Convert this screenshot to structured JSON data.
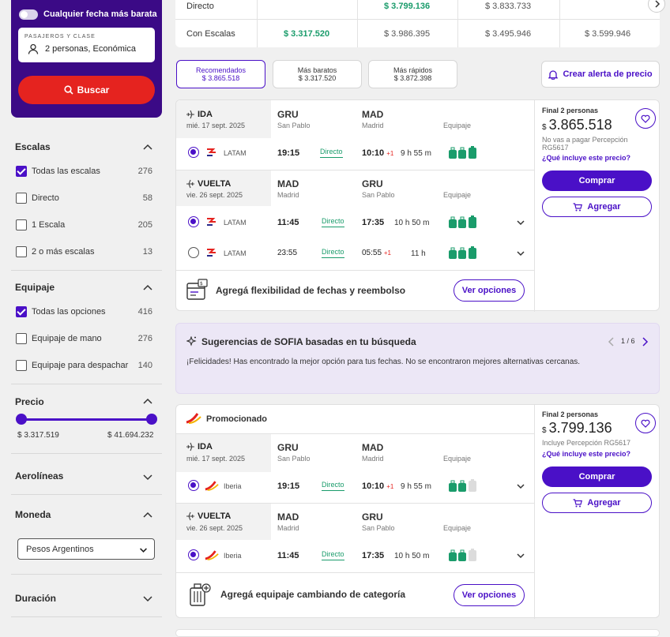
{
  "sidebar": {
    "cheapest_date_label": "Cualquier fecha más barata",
    "passengers_label": "PASAJEROS Y CLASE",
    "passengers_value": "2 personas, Económica",
    "search_label": "Buscar",
    "escalas": {
      "title": "Escalas",
      "options": [
        {
          "label": "Todas las escalas",
          "count": "276",
          "checked": true
        },
        {
          "label": "Directo",
          "count": "58",
          "checked": false
        },
        {
          "label": "1 Escala",
          "count": "205",
          "checked": false
        },
        {
          "label": "2 o más escalas",
          "count": "13",
          "checked": false
        }
      ]
    },
    "equipaje": {
      "title": "Equipaje",
      "options": [
        {
          "label": "Todas las opciones",
          "count": "416",
          "checked": true
        },
        {
          "label": "Equipaje de mano",
          "count": "276",
          "checked": false
        },
        {
          "label": "Equipaje para despachar",
          "count": "140",
          "checked": false
        }
      ]
    },
    "precio": {
      "title": "Precio",
      "min": "$ 3.317.519",
      "max": "$ 41.694.232"
    },
    "aerolineas_title": "Aerolíneas",
    "moneda": {
      "title": "Moneda",
      "selected": "Pesos Argentinos"
    },
    "duracion_title": "Duración"
  },
  "top_table": {
    "rows": [
      {
        "label": "Directo",
        "cells": [
          "",
          "$ 3.799.136",
          "$ 3.833.733",
          ""
        ]
      },
      {
        "label": "Con Escalas",
        "cells": [
          "$ 3.317.520",
          "$ 3.986.395",
          "$ 3.495.946",
          "$ 3.599.946"
        ]
      }
    ]
  },
  "tabs": [
    {
      "title": "Recomendados",
      "price": "$ 3.865.518",
      "active": true
    },
    {
      "title": "Más baratos",
      "price": "$ 3.317.520",
      "active": false
    },
    {
      "title": "Más rápidos",
      "price": "$ 3.872.398",
      "active": false
    }
  ],
  "alert_label": "Crear alerta de precio",
  "card1": {
    "ida": {
      "title": "IDA",
      "date": "mié. 17 sept. 2025",
      "from_code": "GRU",
      "from_city": "San Pablo",
      "to_code": "MAD",
      "to_city": "Madrid",
      "equipaje": "Equipaje",
      "flight": {
        "airline": "LATAM",
        "dep": "19:15",
        "type": "Directo",
        "arr": "10:10",
        "plus": "+1",
        "dur": "9 h 55 m"
      }
    },
    "vuelta": {
      "title": "VUELTA",
      "date": "vie. 26 sept. 2025",
      "from_code": "MAD",
      "from_city": "Madrid",
      "to_code": "GRU",
      "to_city": "San Pablo",
      "equipaje": "Equipaje",
      "flights": [
        {
          "airline": "LATAM",
          "dep": "11:45",
          "type": "Directo",
          "arr": "17:35",
          "plus": "",
          "dur": "10 h 50 m",
          "selected": true
        },
        {
          "airline": "LATAM",
          "dep": "23:55",
          "type": "Directo",
          "arr": "05:55",
          "plus": "+1",
          "dur": "11 h",
          "selected": false
        }
      ]
    },
    "price_label": "Final 2 personas",
    "currency": "$",
    "price": "3.865.518",
    "note": "No vas a pagar Percepción RG5617",
    "what_includes": "¿Qué incluye este precio?",
    "buy": "Comprar",
    "add": "Agregar",
    "flex_text": "Agregá flexibilidad de fechas y reembolso",
    "ver_opciones": "Ver opciones"
  },
  "sofia": {
    "title": "Sugerencias de SOFIA basadas en tu búsqueda",
    "pager": "1 / 6",
    "message": "¡Felicidades! Has encontrado la mejor opción para tus fechas. No se encontraron mejores alternativas cercanas."
  },
  "card2": {
    "promo": "Promocionado",
    "ida": {
      "title": "IDA",
      "date": "mié. 17 sept. 2025",
      "from_code": "GRU",
      "from_city": "San Pablo",
      "to_code": "MAD",
      "to_city": "Madrid",
      "equipaje": "Equipaje",
      "flight": {
        "airline": "Iberia",
        "dep": "19:15",
        "type": "Directo",
        "arr": "10:10",
        "plus": "+1",
        "dur": "9 h 55 m"
      }
    },
    "vuelta": {
      "title": "VUELTA",
      "date": "vie. 26 sept. 2025",
      "from_code": "MAD",
      "from_city": "Madrid",
      "to_code": "GRU",
      "to_city": "San Pablo",
      "equipaje": "Equipaje",
      "flight": {
        "airline": "Iberia",
        "dep": "11:45",
        "type": "Directo",
        "arr": "17:35",
        "plus": "",
        "dur": "10 h 50 m"
      }
    },
    "price_label": "Final 2 personas",
    "currency": "$",
    "price": "3.799.136",
    "note": "Incluye Percepción RG5617",
    "what_includes": "¿Qué incluye este precio?",
    "buy": "Comprar",
    "add": "Agregar",
    "bag_text": "Agregá equipaje cambiando de categoría",
    "ver_opciones": "Ver opciones"
  },
  "colors": {
    "primary": "#4a10c7",
    "brand_dark": "#3b0a86",
    "search": "#e5231f",
    "direct": "#1a9c6b",
    "bag": "#1a9c6b"
  }
}
